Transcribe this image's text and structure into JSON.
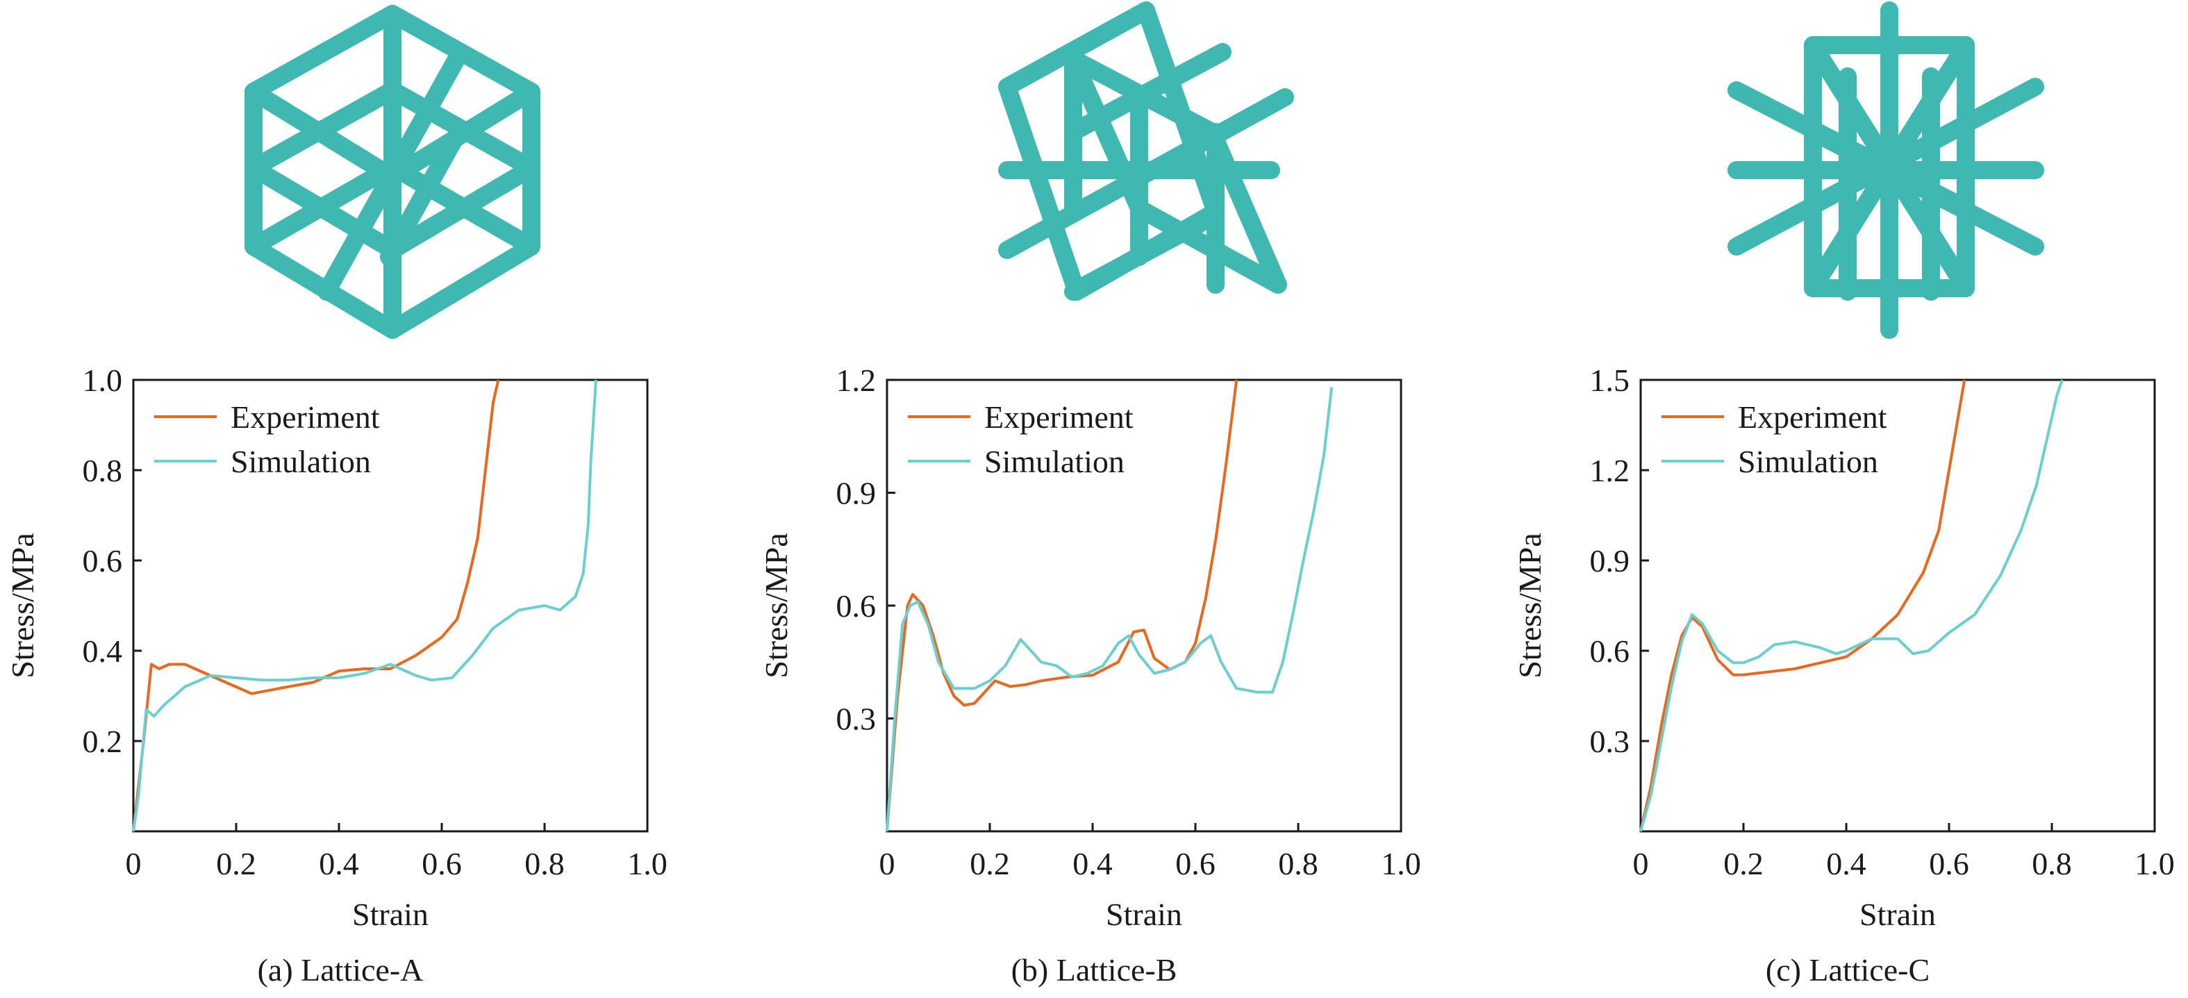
{
  "colors": {
    "experiment": "#e8681f",
    "simulation": "#6ccfcf",
    "lattice": "#3fb8b1",
    "lattice_shade": "#2a8f89",
    "axis": "#1a1a1a"
  },
  "chart_data": [
    {
      "type": "line",
      "xlabel": "Strain",
      "ylabel": "Stress/MPa",
      "caption": "(a) Lattice-A",
      "xlim": [
        0,
        1.0
      ],
      "ylim": [
        0,
        1.0
      ],
      "xticks": [
        0,
        0.2,
        0.4,
        0.6,
        0.8,
        1.0
      ],
      "xtick_labels": [
        "0",
        "0.2",
        "0.4",
        "0.6",
        "0.8",
        "1.0"
      ],
      "yticks": [
        0.2,
        0.4,
        0.6,
        0.8,
        1.0
      ],
      "ytick_labels": [
        "0.2",
        "0.4",
        "0.6",
        "0.8",
        "1.0"
      ],
      "grid": false,
      "legend": "top-left",
      "series": [
        {
          "name": "Experiment",
          "color_key": "experiment",
          "x": [
            0.0,
            0.02,
            0.035,
            0.05,
            0.07,
            0.1,
            0.14,
            0.18,
            0.23,
            0.3,
            0.35,
            0.4,
            0.45,
            0.5,
            0.55,
            0.6,
            0.63,
            0.65,
            0.67,
            0.68,
            0.69,
            0.7,
            0.71
          ],
          "y": [
            0.0,
            0.2,
            0.37,
            0.36,
            0.37,
            0.37,
            0.35,
            0.33,
            0.305,
            0.32,
            0.33,
            0.355,
            0.36,
            0.36,
            0.39,
            0.43,
            0.47,
            0.55,
            0.65,
            0.75,
            0.85,
            0.95,
            1.0
          ]
        },
        {
          "name": "Simulation",
          "color_key": "simulation",
          "x": [
            0.0,
            0.01,
            0.025,
            0.04,
            0.06,
            0.1,
            0.15,
            0.2,
            0.25,
            0.3,
            0.35,
            0.4,
            0.45,
            0.5,
            0.55,
            0.58,
            0.62,
            0.66,
            0.7,
            0.75,
            0.8,
            0.83,
            0.86,
            0.875,
            0.885,
            0.89,
            0.9
          ],
          "y": [
            0.0,
            0.08,
            0.27,
            0.255,
            0.28,
            0.32,
            0.345,
            0.34,
            0.335,
            0.335,
            0.34,
            0.34,
            0.35,
            0.37,
            0.345,
            0.335,
            0.34,
            0.39,
            0.45,
            0.49,
            0.5,
            0.49,
            0.52,
            0.57,
            0.68,
            0.82,
            1.0
          ]
        }
      ]
    },
    {
      "type": "line",
      "xlabel": "Strain",
      "ylabel": "Stress/MPa",
      "caption": "(b) Lattice-B",
      "xlim": [
        0,
        1.0
      ],
      "ylim": [
        0,
        1.2
      ],
      "xticks": [
        0,
        0.2,
        0.4,
        0.6,
        0.8,
        1.0
      ],
      "xtick_labels": [
        "0",
        "0.2",
        "0.4",
        "0.6",
        "0.8",
        "1.0"
      ],
      "yticks": [
        0.3,
        0.6,
        0.9,
        1.2
      ],
      "ytick_labels": [
        "0.3",
        "0.6",
        "0.9",
        "1.2"
      ],
      "grid": false,
      "legend": "top-left",
      "series": [
        {
          "name": "Experiment",
          "color_key": "experiment",
          "x": [
            0.0,
            0.02,
            0.04,
            0.05,
            0.07,
            0.09,
            0.11,
            0.13,
            0.15,
            0.17,
            0.19,
            0.21,
            0.24,
            0.27,
            0.3,
            0.35,
            0.4,
            0.45,
            0.48,
            0.5,
            0.52,
            0.55,
            0.58,
            0.6,
            0.62,
            0.64,
            0.66,
            0.68
          ],
          "y": [
            0.0,
            0.35,
            0.6,
            0.63,
            0.6,
            0.52,
            0.42,
            0.36,
            0.335,
            0.34,
            0.37,
            0.4,
            0.385,
            0.39,
            0.4,
            0.41,
            0.415,
            0.45,
            0.53,
            0.535,
            0.46,
            0.43,
            0.45,
            0.5,
            0.62,
            0.78,
            0.98,
            1.2
          ]
        },
        {
          "name": "Simulation",
          "color_key": "simulation",
          "x": [
            0.0,
            0.015,
            0.03,
            0.045,
            0.06,
            0.08,
            0.1,
            0.13,
            0.17,
            0.2,
            0.23,
            0.26,
            0.28,
            0.3,
            0.33,
            0.36,
            0.39,
            0.42,
            0.45,
            0.47,
            0.49,
            0.52,
            0.55,
            0.58,
            0.61,
            0.63,
            0.65,
            0.68,
            0.72,
            0.75,
            0.77,
            0.79,
            0.81,
            0.83,
            0.85,
            0.865
          ],
          "y": [
            0.0,
            0.3,
            0.55,
            0.6,
            0.61,
            0.55,
            0.45,
            0.38,
            0.38,
            0.4,
            0.44,
            0.51,
            0.48,
            0.45,
            0.44,
            0.41,
            0.42,
            0.44,
            0.5,
            0.52,
            0.47,
            0.42,
            0.43,
            0.45,
            0.5,
            0.52,
            0.45,
            0.38,
            0.37,
            0.37,
            0.45,
            0.58,
            0.72,
            0.85,
            1.0,
            1.18
          ]
        }
      ]
    },
    {
      "type": "line",
      "xlabel": "Strain",
      "ylabel": "Stress/MPa",
      "caption": "(c) Lattice-C",
      "xlim": [
        0,
        1.0
      ],
      "ylim": [
        0,
        1.5
      ],
      "xticks": [
        0,
        0.2,
        0.4,
        0.6,
        0.8,
        1.0
      ],
      "xtick_labels": [
        "0",
        "0.2",
        "0.4",
        "0.6",
        "0.8",
        "1.0"
      ],
      "yticks": [
        0.3,
        0.6,
        0.9,
        1.2,
        1.5
      ],
      "ytick_labels": [
        "0.3",
        "0.6",
        "0.9",
        "1.2",
        "1.5"
      ],
      "grid": false,
      "legend": "top-left",
      "series": [
        {
          "name": "Experiment",
          "color_key": "experiment",
          "x": [
            0.0,
            0.02,
            0.04,
            0.06,
            0.08,
            0.1,
            0.12,
            0.15,
            0.18,
            0.2,
            0.25,
            0.3,
            0.35,
            0.4,
            0.45,
            0.5,
            0.55,
            0.58,
            0.6,
            0.62,
            0.63
          ],
          "y": [
            0.0,
            0.15,
            0.35,
            0.52,
            0.65,
            0.71,
            0.68,
            0.57,
            0.52,
            0.52,
            0.53,
            0.54,
            0.56,
            0.58,
            0.64,
            0.72,
            0.86,
            1.0,
            1.2,
            1.4,
            1.5
          ]
        },
        {
          "name": "Simulation",
          "color_key": "simulation",
          "x": [
            0.0,
            0.02,
            0.04,
            0.06,
            0.08,
            0.1,
            0.12,
            0.15,
            0.18,
            0.2,
            0.23,
            0.26,
            0.3,
            0.35,
            0.38,
            0.4,
            0.45,
            0.5,
            0.53,
            0.56,
            0.6,
            0.65,
            0.7,
            0.74,
            0.77,
            0.79,
            0.81,
            0.82
          ],
          "y": [
            0.0,
            0.12,
            0.3,
            0.48,
            0.63,
            0.72,
            0.69,
            0.6,
            0.56,
            0.56,
            0.58,
            0.62,
            0.63,
            0.61,
            0.59,
            0.6,
            0.64,
            0.64,
            0.59,
            0.6,
            0.66,
            0.72,
            0.85,
            1.0,
            1.15,
            1.3,
            1.45,
            1.5
          ]
        }
      ]
    }
  ]
}
